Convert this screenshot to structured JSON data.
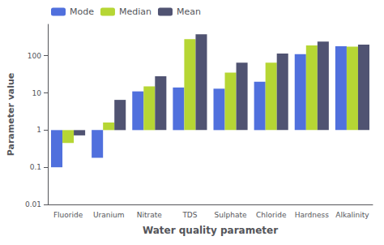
{
  "chart_data": {
    "type": "bar",
    "xlabel": "Water quality parameter",
    "ylabel": "Parameter value",
    "categories": [
      "Fluoride",
      "Uranium",
      "Nitrate",
      "TDS",
      "Sulphate",
      "Chloride",
      "Hardness",
      "Alkalinity"
    ],
    "series": [
      {
        "name": "Mode",
        "values": [
          0.1,
          0.18,
          11.0,
          14.0,
          13.0,
          20.0,
          110.0,
          180.0
        ]
      },
      {
        "name": "Median",
        "values": [
          0.45,
          1.6,
          15.0,
          280.0,
          35.0,
          65.0,
          190.0,
          175.0
        ]
      },
      {
        "name": "Mean",
        "values": [
          0.72,
          6.5,
          28.0,
          380.0,
          65.0,
          115.0,
          240.0,
          200.0
        ]
      }
    ],
    "log": "y",
    "ylim": [
      0.01,
      700
    ],
    "yticks": [
      0.01,
      0.1,
      1,
      10,
      100
    ],
    "grid": false,
    "legend": "upper left"
  }
}
